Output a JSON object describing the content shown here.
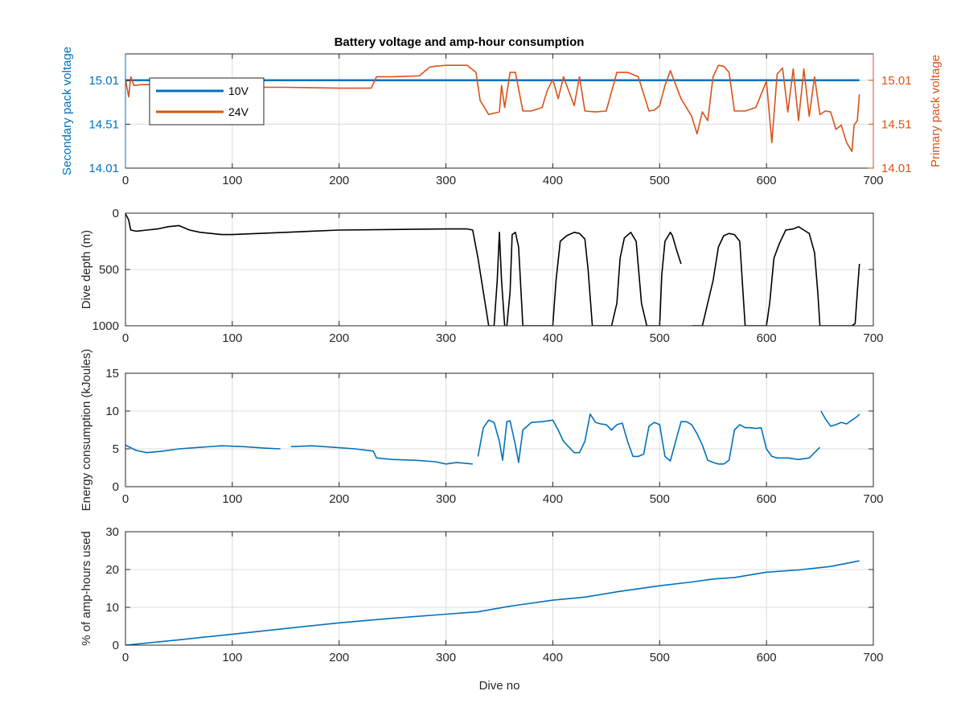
{
  "title": "Battery voltage and amp-hour consumption",
  "colors": {
    "blue": "#0072BD",
    "orange": "#D95319",
    "black": "#000000",
    "grid": "#dcdcdc",
    "axis": "#262626"
  },
  "chart_data": [
    {
      "id": "voltage",
      "type": "line",
      "title": "Battery voltage and amp-hour consumption",
      "xlim": [
        0,
        700
      ],
      "xticks": [
        0,
        100,
        200,
        300,
        400,
        500,
        600,
        700
      ],
      "ylabel_left": "Secondary pack voltage",
      "ylabel_right": "Primary pack voltage",
      "ylim_left": [
        14.01,
        15.31
      ],
      "ylim_right": [
        14.01,
        15.31
      ],
      "yticks_left": [
        "14.01",
        "14.51",
        "15.01"
      ],
      "yticks_right": [
        "14.01",
        "14.51",
        "15.01"
      ],
      "grid": true,
      "legend": {
        "position": "top-left",
        "entries": [
          "10V",
          "24V"
        ]
      },
      "series": [
        {
          "name": "10V",
          "axis": "left",
          "color": "#0072BD",
          "x": [
            0,
            687
          ],
          "y": [
            15.01,
            15.01
          ]
        },
        {
          "name": "24V",
          "axis": "right",
          "color": "#D95319",
          "x": [
            0,
            3,
            5,
            8,
            15,
            30,
            60,
            100,
            150,
            200,
            230,
            235,
            250,
            275,
            285,
            290,
            300,
            320,
            328,
            332,
            340,
            350,
            352,
            355,
            360,
            365,
            372,
            380,
            390,
            395,
            400,
            405,
            410,
            420,
            425,
            430,
            440,
            450,
            460,
            470,
            480,
            490,
            495,
            500,
            505,
            510,
            520,
            530,
            535,
            540,
            545,
            550,
            555,
            560,
            565,
            570,
            580,
            590,
            600,
            605,
            610,
            615,
            620,
            625,
            630,
            635,
            640,
            645,
            650,
            655,
            660,
            665,
            670,
            675,
            680,
            682,
            685,
            687
          ],
          "y": [
            15.02,
            14.82,
            15.05,
            14.95,
            14.96,
            14.96,
            14.95,
            14.93,
            14.93,
            14.92,
            14.92,
            15.05,
            15.05,
            15.06,
            15.16,
            15.17,
            15.18,
            15.18,
            15.1,
            14.78,
            14.62,
            14.65,
            14.95,
            14.7,
            15.1,
            15.1,
            14.66,
            14.66,
            14.7,
            14.9,
            15.02,
            14.8,
            15.05,
            14.72,
            15.05,
            14.66,
            14.65,
            14.66,
            15.1,
            15.1,
            15.05,
            14.66,
            14.67,
            14.72,
            14.95,
            15.12,
            14.8,
            14.6,
            14.4,
            14.65,
            14.55,
            15.05,
            15.18,
            15.17,
            15.1,
            14.66,
            14.66,
            14.7,
            15.0,
            14.3,
            15.08,
            15.15,
            14.65,
            15.14,
            14.55,
            15.14,
            14.6,
            15.05,
            14.62,
            14.66,
            14.65,
            14.45,
            14.5,
            14.3,
            14.2,
            14.5,
            14.55,
            14.85
          ]
        }
      ]
    },
    {
      "id": "depth",
      "type": "line",
      "ylabel": "Dive depth (m)",
      "xlim": [
        0,
        700
      ],
      "xticks": [
        0,
        100,
        200,
        300,
        400,
        500,
        600,
        700
      ],
      "ylim": [
        0,
        1000
      ],
      "yreverse": true,
      "yticks": [
        "0",
        "500",
        "1000"
      ],
      "grid": true,
      "series": [
        {
          "name": "",
          "color": "#000000",
          "segments": [
            {
              "x": [
                0,
                3,
                5,
                10,
                20,
                30,
                40,
                50,
                60,
                70,
                80,
                90,
                100,
                150,
                200,
                250,
                300,
                320,
                325,
                330,
                340,
                345,
                348,
                350,
                352,
                355,
                357,
                360,
                362,
                365,
                368,
                372,
                376,
                380,
                395,
                400,
                403,
                407,
                413,
                420,
                425,
                430,
                433,
                437,
                443,
                448,
                455,
                460,
                463,
                467,
                473,
                478,
                483,
                488,
                490,
                495,
                500,
                502,
                505,
                510,
                512,
                516,
                520
              ],
              "y": [
                5,
                60,
                150,
                160,
                150,
                140,
                120,
                110,
                150,
                170,
                180,
                190,
                190,
                170,
                150,
                145,
                140,
                140,
                150,
                400,
                1000,
                1000,
                600,
                170,
                600,
                1000,
                1000,
                700,
                190,
                170,
                300,
                1000,
                1000,
                1000,
                1000,
                1000,
                600,
                250,
                200,
                170,
                180,
                230,
                500,
                1000,
                1000,
                1000,
                1000,
                800,
                400,
                220,
                170,
                250,
                800,
                1000,
                1000,
                1000,
                1000,
                550,
                250,
                170,
                200,
                330,
                450
              ]
            },
            {
              "x": [
                530,
                540,
                550,
                555,
                560,
                565,
                570,
                575,
                580,
                600,
                603,
                607,
                612,
                618,
                625,
                630,
                635,
                640,
                645,
                648,
                650,
                660,
                670,
                680,
                683,
                685,
                687
              ],
              "y": [
                1000,
                1000,
                600,
                300,
                200,
                180,
                190,
                250,
                1000,
                1000,
                800,
                400,
                270,
                150,
                140,
                120,
                150,
                180,
                350,
                700,
                1000,
                1000,
                1000,
                1000,
                980,
                700,
                450
              ]
            }
          ]
        }
      ]
    },
    {
      "id": "energy",
      "type": "line",
      "ylabel": "Energy consumption (kJoules)",
      "xlim": [
        0,
        700
      ],
      "xticks": [
        0,
        100,
        200,
        300,
        400,
        500,
        600,
        700
      ],
      "ylim": [
        0,
        15
      ],
      "yticks": [
        "0",
        "5",
        "10",
        "15"
      ],
      "grid": true,
      "series": [
        {
          "name": "",
          "color": "#0072BD",
          "segments": [
            {
              "x": [
                0,
                10,
                20,
                35,
                50,
                70,
                90,
                110,
                130,
                145
              ],
              "y": [
                5.5,
                4.8,
                4.5,
                4.7,
                5.0,
                5.2,
                5.4,
                5.3,
                5.1,
                5.0
              ]
            },
            {
              "x": [
                155,
                175,
                195,
                215,
                232,
                235,
                250,
                270,
                290,
                300,
                310,
                325
              ],
              "y": [
                5.3,
                5.4,
                5.2,
                5.0,
                4.7,
                3.8,
                3.6,
                3.5,
                3.3,
                3.0,
                3.2,
                3.0
              ]
            },
            {
              "x": [
                330,
                335,
                340,
                345,
                350,
                353,
                357,
                360,
                365,
                368,
                372,
                380,
                390,
                400,
                405,
                410,
                420,
                425,
                430,
                435,
                440,
                445,
                450,
                455,
                460,
                465,
                470,
                475,
                480,
                485,
                490,
                495,
                500,
                505,
                510,
                515,
                520,
                525,
                530,
                535,
                540,
                545,
                550,
                555,
                560,
                565,
                570,
                575,
                580,
                585,
                590,
                595,
                600,
                605,
                610,
                620,
                630,
                640,
                650
              ],
              "y": [
                4.0,
                7.8,
                8.8,
                8.5,
                6.0,
                3.5,
                8.6,
                8.7,
                5.5,
                3.2,
                7.5,
                8.5,
                8.6,
                8.8,
                7.5,
                6.0,
                4.5,
                4.5,
                6.0,
                9.6,
                8.5,
                8.3,
                8.2,
                7.5,
                8.2,
                8.4,
                6.0,
                4.0,
                4.0,
                4.3,
                8.0,
                8.5,
                8.2,
                4.0,
                3.4,
                6.0,
                8.6,
                8.6,
                8.2,
                7.0,
                5.5,
                3.5,
                3.2,
                3.0,
                3.0,
                3.5,
                7.5,
                8.2,
                7.8,
                7.8,
                7.7,
                7.8,
                5.0,
                4.0,
                3.8,
                3.8,
                3.6,
                3.8,
                5.2
              ]
            },
            {
              "x": [
                651,
                655,
                660,
                665,
                670,
                675,
                680,
                685,
                687
              ],
              "y": [
                10.0,
                9.0,
                8.0,
                8.2,
                8.5,
                8.3,
                8.8,
                9.3,
                9.6
              ]
            }
          ]
        }
      ]
    },
    {
      "id": "amphours",
      "type": "line",
      "ylabel": "% of amp-hours used",
      "xlabel": "Dive no",
      "xlim": [
        0,
        700
      ],
      "xticks": [
        0,
        100,
        200,
        300,
        400,
        500,
        600,
        700
      ],
      "ylim": [
        0,
        30
      ],
      "yticks": [
        "0",
        "10",
        "20",
        "30"
      ],
      "grid": true,
      "series": [
        {
          "name": "",
          "color": "#0072BD",
          "x": [
            0,
            50,
            100,
            150,
            200,
            250,
            300,
            330,
            360,
            400,
            430,
            460,
            500,
            530,
            550,
            570,
            600,
            630,
            660,
            687
          ],
          "y": [
            0,
            1.4,
            2.9,
            4.4,
            5.9,
            7.1,
            8.2,
            8.8,
            10.3,
            11.9,
            12.7,
            14.1,
            15.7,
            16.7,
            17.5,
            17.9,
            19.3,
            19.9,
            20.8,
            22.3
          ]
        }
      ]
    }
  ]
}
